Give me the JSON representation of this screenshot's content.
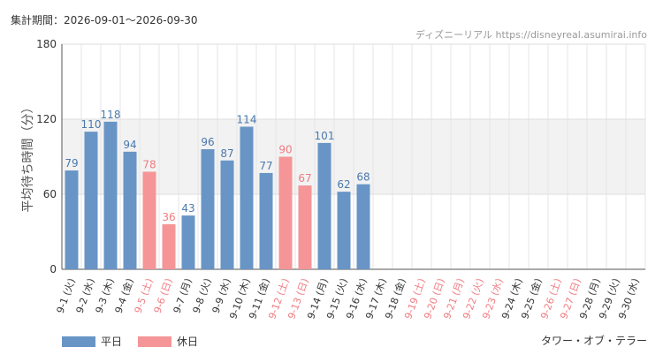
{
  "header": {
    "period": "集計期間：2026-09-01〜2026-09-30",
    "source": "ディズニーリアル https://disneyreal.asumirai.info"
  },
  "footer": {
    "attraction": "タワー・オブ・テラー"
  },
  "colors": {
    "weekday": "#6895c6",
    "holiday": "#f59597",
    "weekday_label": "#4a79ad",
    "holiday_label": "#f07b80",
    "band": "#f2f2f2"
  },
  "chart_data": {
    "type": "bar",
    "ylabel": "平均待ち時間（分）",
    "ylim": [
      0,
      180
    ],
    "yticks": [
      0,
      60,
      120,
      180
    ],
    "shaded_band": [
      60,
      120
    ],
    "series": [
      {
        "name": "平日",
        "key": "weekday"
      },
      {
        "name": "休日",
        "key": "holiday"
      }
    ],
    "categories": [
      {
        "label": "9-1 (火)",
        "value": 79,
        "type": "weekday"
      },
      {
        "label": "9-2 (水)",
        "value": 110,
        "type": "weekday"
      },
      {
        "label": "9-3 (木)",
        "value": 118,
        "type": "weekday"
      },
      {
        "label": "9-4 (金)",
        "value": 94,
        "type": "weekday"
      },
      {
        "label": "9-5 (土)",
        "value": 78,
        "type": "holiday"
      },
      {
        "label": "9-6 (日)",
        "value": 36,
        "type": "holiday"
      },
      {
        "label": "9-7 (月)",
        "value": 43,
        "type": "weekday"
      },
      {
        "label": "9-8 (火)",
        "value": 96,
        "type": "weekday"
      },
      {
        "label": "9-9 (水)",
        "value": 87,
        "type": "weekday"
      },
      {
        "label": "9-10 (木)",
        "value": 114,
        "type": "weekday"
      },
      {
        "label": "9-11 (金)",
        "value": 77,
        "type": "weekday"
      },
      {
        "label": "9-12 (土)",
        "value": 90,
        "type": "holiday"
      },
      {
        "label": "9-13 (日)",
        "value": 67,
        "type": "holiday"
      },
      {
        "label": "9-14 (月)",
        "value": 101,
        "type": "weekday"
      },
      {
        "label": "9-15 (火)",
        "value": 62,
        "type": "weekday"
      },
      {
        "label": "9-16 (水)",
        "value": 68,
        "type": "weekday"
      },
      {
        "label": "9-17 (木)",
        "value": null,
        "type": "weekday"
      },
      {
        "label": "9-18 (金)",
        "value": null,
        "type": "weekday"
      },
      {
        "label": "9-19 (土)",
        "value": null,
        "type": "holiday"
      },
      {
        "label": "9-20 (日)",
        "value": null,
        "type": "holiday"
      },
      {
        "label": "9-21 (月)",
        "value": null,
        "type": "holiday"
      },
      {
        "label": "9-22 (火)",
        "value": null,
        "type": "holiday"
      },
      {
        "label": "9-23 (水)",
        "value": null,
        "type": "holiday"
      },
      {
        "label": "9-24 (木)",
        "value": null,
        "type": "weekday"
      },
      {
        "label": "9-25 (金)",
        "value": null,
        "type": "weekday"
      },
      {
        "label": "9-26 (土)",
        "value": null,
        "type": "holiday"
      },
      {
        "label": "9-27 (日)",
        "value": null,
        "type": "holiday"
      },
      {
        "label": "9-28 (月)",
        "value": null,
        "type": "weekday"
      },
      {
        "label": "9-29 (火)",
        "value": null,
        "type": "weekday"
      },
      {
        "label": "9-30 (水)",
        "value": null,
        "type": "weekday"
      }
    ]
  }
}
